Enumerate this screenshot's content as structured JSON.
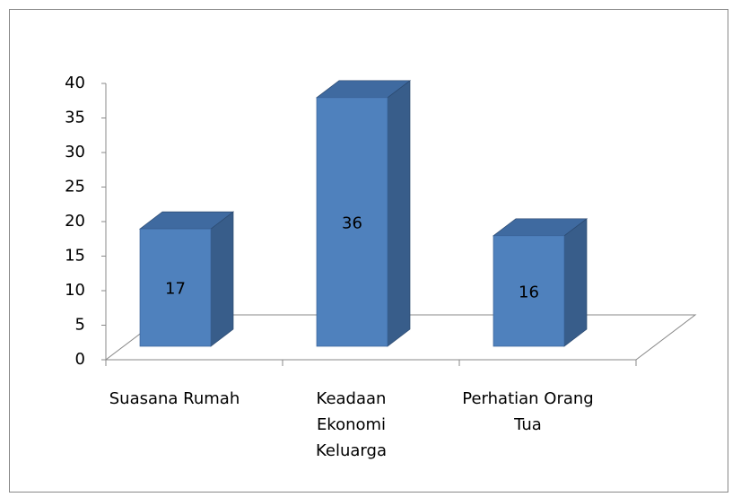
{
  "chart_data": {
    "type": "bar3d",
    "categories": [
      "Suasana Rumah",
      "Keadaan Ekonomi Keluarga",
      "Perhatian Orang Tua"
    ],
    "values": [
      17,
      36,
      16
    ],
    "color": "#4f81bd",
    "ylim": [
      0,
      40
    ],
    "yticks": [
      0,
      5,
      10,
      15,
      20,
      25,
      30,
      35,
      40
    ]
  }
}
